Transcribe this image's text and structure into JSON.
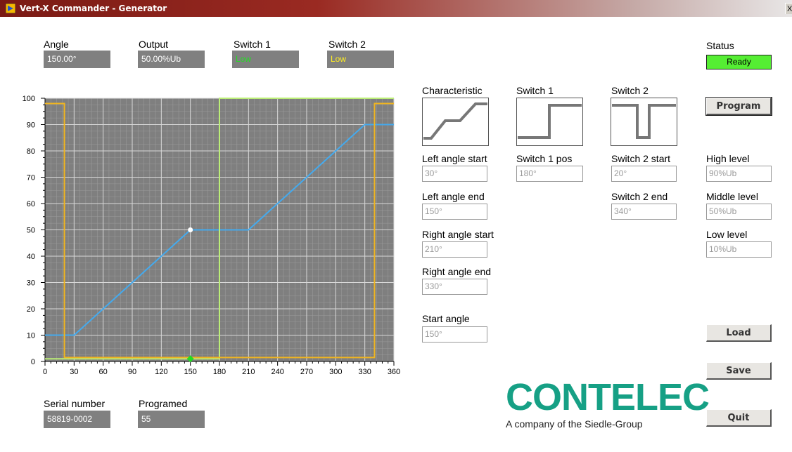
{
  "window": {
    "title": "Vert-X Commander - Generator",
    "close_label": "X"
  },
  "readouts": {
    "angle": {
      "label": "Angle",
      "value": "150.00°"
    },
    "output": {
      "label": "Output",
      "value": "50.00%Ub"
    },
    "switch1": {
      "label": "Switch 1",
      "value": "Low"
    },
    "switch2": {
      "label": "Switch 2",
      "value": "Low"
    }
  },
  "status": {
    "label": "Status",
    "value": "Ready",
    "color": "#55ee33"
  },
  "config": {
    "characteristic_label": "Characteristic",
    "switch1_label": "Switch 1",
    "switch2_label": "Switch 2",
    "left_angle_start": {
      "label": "Left angle start",
      "value": "30°"
    },
    "left_angle_end": {
      "label": "Left angle end",
      "value": "150°"
    },
    "right_angle_start": {
      "label": "Right angle start",
      "value": "210°"
    },
    "right_angle_end": {
      "label": "Right angle end",
      "value": "330°"
    },
    "start_angle": {
      "label": "Start angle",
      "value": "150°"
    },
    "switch1_pos": {
      "label": "Switch 1 pos",
      "value": "180°"
    },
    "switch2_start": {
      "label": "Switch 2 start",
      "value": "20°"
    },
    "switch2_end": {
      "label": "Switch 2 end",
      "value": "340°"
    },
    "high_level": {
      "label": "High level",
      "value": "90%Ub"
    },
    "middle_level": {
      "label": "Middle level",
      "value": "50%Ub"
    },
    "low_level": {
      "label": "Low level",
      "value": "10%Ub"
    }
  },
  "buttons": {
    "program": "Program",
    "load": "Load",
    "save": "Save",
    "quit": "Quit"
  },
  "footer": {
    "serial_label": "Serial number",
    "serial_value": "58819-0002",
    "programed_label": "Programed",
    "programed_value": "55"
  },
  "logo": {
    "name": "CONTELEC",
    "tagline": "A company of the Siedle-Group",
    "color": "#16a085"
  },
  "chart_data": {
    "type": "line",
    "xlim": [
      0,
      360
    ],
    "ylim": [
      0,
      100
    ],
    "x_ticks": [
      0,
      30,
      60,
      90,
      120,
      150,
      180,
      210,
      240,
      270,
      300,
      330,
      360
    ],
    "y_ticks": [
      0,
      10,
      20,
      30,
      40,
      50,
      60,
      70,
      80,
      90,
      100
    ],
    "grid": true,
    "background": "#7f7f7f",
    "series": [
      {
        "color": "#44aaee",
        "points": [
          [
            0,
            10
          ],
          [
            30,
            10
          ],
          [
            150,
            50
          ],
          [
            210,
            50
          ],
          [
            330,
            90
          ],
          [
            360,
            90
          ]
        ]
      },
      {
        "color": "#bbee77",
        "points": [
          [
            0,
            1
          ],
          [
            180,
            1
          ],
          [
            180,
            100
          ],
          [
            360,
            100
          ]
        ]
      },
      {
        "color": "#f0b520",
        "points": [
          [
            0,
            98
          ],
          [
            20,
            98
          ],
          [
            20,
            1.5
          ],
          [
            340,
            1.5
          ],
          [
            340,
            98
          ],
          [
            360,
            98
          ]
        ]
      }
    ],
    "markers": [
      {
        "x": 150,
        "y": 50,
        "color": "#ffffff",
        "shape": "circle"
      },
      {
        "x": 150,
        "y": 1,
        "color": "#22dd22",
        "shape": "diamond"
      }
    ]
  }
}
